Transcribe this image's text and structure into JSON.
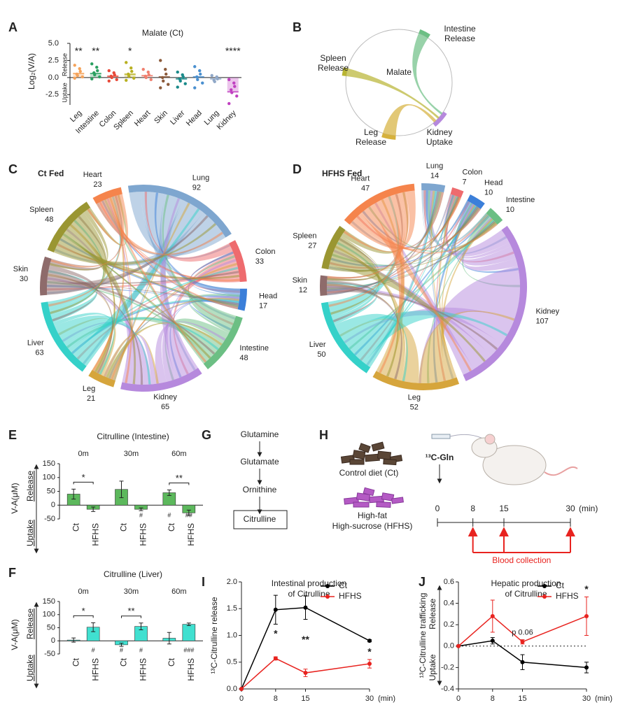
{
  "chart_data": [
    {
      "type": "strip",
      "panel": "A",
      "title": "Malate (Ct)",
      "ylabel": "Log₂(V/A)",
      "release_label": "Release",
      "uptake_label": "Uptake",
      "categories": [
        "Leg",
        "Intestine",
        "Colon",
        "Spleen",
        "Heart",
        "Skin",
        "Liver",
        "Head",
        "Lung",
        "Kidney"
      ],
      "values": [
        0.6,
        0.6,
        0.2,
        0.5,
        0.3,
        0.1,
        -0.2,
        0.1,
        -0.2,
        -2.1
      ],
      "points": [
        [
          1.8,
          1.3,
          0.9,
          0.5,
          0.3,
          0.1,
          -0.1
        ],
        [
          2.0,
          1.5,
          1.0,
          0.7,
          0.4,
          0.1,
          -0.2
        ],
        [
          1.0,
          0.7,
          0.4,
          0.2,
          0.0,
          -0.3,
          -0.5
        ],
        [
          2.2,
          1.4,
          0.9,
          0.5,
          0.2,
          -0.1,
          -0.4
        ],
        [
          1.2,
          0.8,
          0.4,
          0.2,
          0.0,
          -0.3
        ],
        [
          2.5,
          1.2,
          0.5,
          0.0,
          -0.5,
          -1.0,
          -1.5
        ],
        [
          0.8,
          0.4,
          0.1,
          -0.2,
          -0.5,
          -0.9,
          -1.4
        ],
        [
          1.6,
          1.0,
          0.5,
          0.1,
          -0.3,
          -0.8,
          -1.5
        ],
        [
          0.3,
          0.1,
          -0.2,
          -0.4,
          -0.6
        ],
        [
          -0.3,
          -0.8,
          -1.3,
          -1.8,
          -2.2,
          -2.7,
          -3.8
        ]
      ],
      "colors": [
        "#f5a35a",
        "#2aa060",
        "#e84a3a",
        "#b8b020",
        "#f08070",
        "#8b5a3a",
        "#1a8a8a",
        "#4a90d0",
        "#90a8c8",
        "#c040c0"
      ],
      "significance": [
        "**",
        "**",
        null,
        "*",
        null,
        null,
        null,
        null,
        null,
        "****"
      ],
      "ylim": [
        -4,
        5
      ],
      "yticks": [
        {
          "value": 5,
          "label": "5.0"
        },
        {
          "value": 2.5,
          "label": "2.5"
        },
        {
          "value": 0,
          "label": "0.0"
        },
        {
          "value": -2.5,
          "label": "-2.5"
        }
      ]
    },
    {
      "type": "chord",
      "panel": "C",
      "title": "Ct Fed",
      "categories": [
        "Lung",
        "Colon",
        "Head",
        "Intestine",
        "Kidney",
        "Leg",
        "Liver",
        "Skin",
        "Spleen",
        "Heart"
      ],
      "values": [
        92,
        33,
        17,
        48,
        65,
        21,
        63,
        30,
        48,
        23
      ],
      "colors": [
        "#7ea6cf",
        "#ee6b6e",
        "#3b7fd9",
        "#6cbf84",
        "#b689dd",
        "#d6a53c",
        "#35d1c9",
        "#8e6b6b",
        "#9a9632",
        "#f5844c"
      ]
    },
    {
      "type": "chord",
      "panel": "D",
      "title": "HFHS Fed",
      "categories": [
        "Lung",
        "Colon",
        "Head",
        "Intestine",
        "Kidney",
        "Leg",
        "Liver",
        "Skin",
        "Spleen",
        "Heart"
      ],
      "values": [
        14,
        7,
        10,
        10,
        107,
        52,
        50,
        12,
        27,
        47
      ],
      "colors": [
        "#7ea6cf",
        "#ee6b6e",
        "#3b7fd9",
        "#6cbf84",
        "#b689dd",
        "#d6a53c",
        "#35d1c9",
        "#8e6b6b",
        "#9a9632",
        "#f5844c"
      ]
    },
    {
      "type": "bar",
      "panel": "E",
      "title": "Citrulline (Intestine)",
      "ylabel": "V-A(μM)",
      "release_label": "Release",
      "uptake_label": "Uptake",
      "groups": [
        "0m",
        "30m",
        "60m"
      ],
      "series": [
        {
          "name": "Ct",
          "color": "#5cb85c",
          "values": [
            40,
            57,
            45
          ],
          "errors": [
            18,
            30,
            10
          ],
          "below_labels": [
            null,
            null,
            "#"
          ]
        },
        {
          "name": "HFHS",
          "color": "#5cb85c",
          "values": [
            -15,
            -15,
            -28
          ],
          "errors": [
            8,
            5,
            10
          ],
          "below_labels": [
            null,
            "#",
            "##"
          ]
        }
      ],
      "bracket_labels": [
        "*",
        null,
        "**"
      ],
      "ylim": [
        -50,
        150
      ],
      "yticks": [
        -50,
        0,
        50,
        100,
        150
      ]
    },
    {
      "type": "bar",
      "panel": "F",
      "title": "Citrulline (Liver)",
      "ylabel": "V-A(μM)",
      "release_label": "Release",
      "uptake_label": "Uptake",
      "groups": [
        "0m",
        "30m",
        "60m"
      ],
      "series": [
        {
          "name": "Ct",
          "color": "#40e0d0",
          "values": [
            3,
            -15,
            10
          ],
          "errors": [
            8,
            6,
            22
          ],
          "below_labels": [
            null,
            "#",
            null
          ]
        },
        {
          "name": "HFHS",
          "color": "#40e0d0",
          "values": [
            52,
            55,
            63
          ],
          "errors": [
            17,
            13,
            5
          ],
          "below_labels": [
            "#",
            "#",
            "###"
          ]
        }
      ],
      "bracket_labels": [
        "*",
        "**",
        null
      ],
      "ylim": [
        -50,
        150
      ],
      "yticks": [
        -50,
        0,
        50,
        100,
        150
      ]
    },
    {
      "type": "line",
      "panel": "I",
      "title": [
        "Intestinal production",
        "of Citrulline"
      ],
      "ylabel": "¹³C-Citrulline release",
      "x": [
        0,
        8,
        15,
        30
      ],
      "xlim": [
        0,
        30
      ],
      "xticks": [
        0,
        8,
        15,
        30
      ],
      "xunit": "(min)",
      "series": [
        {
          "name": "Ct",
          "color": "#000000",
          "values": [
            0,
            1.48,
            1.52,
            0.9
          ],
          "errors": [
            0,
            0.27,
            0.22,
            0.02
          ]
        },
        {
          "name": "HFHS",
          "color": "#e8231f",
          "values": [
            0,
            0.57,
            0.3,
            0.47
          ],
          "errors": [
            0,
            0.03,
            0.07,
            0.08
          ]
        }
      ],
      "significance": [
        null,
        "*",
        "**",
        "*"
      ],
      "legend": "upper right",
      "ylim": [
        0,
        2
      ],
      "yticks": [
        {
          "value": 0,
          "label": "0.0"
        },
        {
          "value": 0.5,
          "label": "0.5"
        },
        {
          "value": 1,
          "label": "1.0"
        },
        {
          "value": 1.5,
          "label": "1.5"
        },
        {
          "value": 2,
          "label": "2.0"
        }
      ]
    },
    {
      "type": "line",
      "panel": "J",
      "title": [
        "Hepatic production",
        "of Citrulline"
      ],
      "ylabel": "¹³C-Citrulline trafficking",
      "release_label": "Release",
      "uptake_label": "Uptake",
      "x": [
        0,
        8,
        15,
        30
      ],
      "xlim": [
        0,
        30
      ],
      "xticks": [
        0,
        8,
        15,
        30
      ],
      "xunit": "(min)",
      "series": [
        {
          "name": "Ct",
          "color": "#000000",
          "values": [
            0,
            0.05,
            -0.15,
            -0.2
          ],
          "errors": [
            0,
            0.03,
            0.07,
            0.05
          ]
        },
        {
          "name": "HFHS",
          "color": "#e8231f",
          "values": [
            0,
            0.28,
            0.04,
            0.28
          ],
          "errors": [
            0,
            0.15,
            0.02,
            0.18
          ]
        }
      ],
      "significance": [
        null,
        null,
        "p 0.06",
        "*"
      ],
      "legend": "upper right",
      "zero_line": true,
      "ylim": [
        -0.4,
        0.6
      ],
      "yticks": [
        -0.4,
        -0.2,
        {
          "value": 0,
          "label": "0.0"
        },
        0.2,
        0.4,
        0.6
      ]
    }
  ],
  "diagrams": {
    "malate": {
      "panel": "B",
      "center_label": "Malate",
      "labels": [
        [
          "Intestine",
          "Release"
        ],
        [
          "Spleen",
          "Release"
        ],
        [
          "Leg",
          "Release"
        ],
        [
          "Kidney",
          "Uptake"
        ]
      ]
    },
    "pathway": {
      "panel": "G",
      "steps": [
        "Glutamine",
        "Glutamate",
        "Ornithine",
        "Citrulline"
      ]
    },
    "design": {
      "panel": "H",
      "control_label": "Control diet (Ct)",
      "hfhs_label": [
        "High-fat",
        "High-sucrose (HFHS)"
      ],
      "tracer": "¹³C-Gln",
      "timeline": [
        0,
        8,
        15,
        30
      ],
      "unit": "(min)",
      "collection": [
        8,
        15,
        30
      ],
      "collection_label": "Blood collection"
    }
  }
}
